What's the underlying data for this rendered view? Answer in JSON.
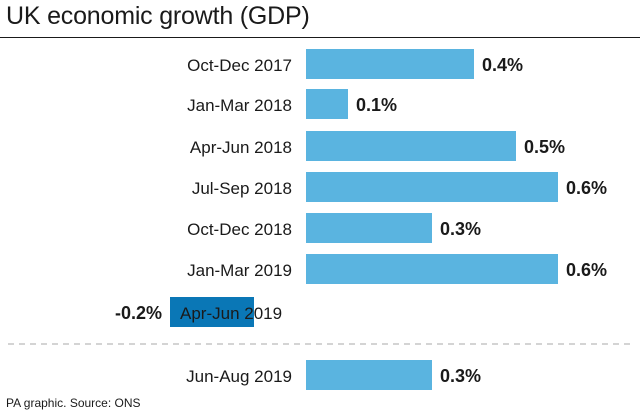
{
  "chart_data": {
    "type": "bar",
    "orientation": "horizontal",
    "title": "UK economic growth (GDP)",
    "categories": [
      "Oct-Dec 2017",
      "Jan-Mar 2018",
      "Apr-Jun 2018",
      "Jul-Sep 2018",
      "Oct-Dec 2018",
      "Jan-Mar 2019",
      "Apr-Jun 2019",
      "Jun-Aug 2019"
    ],
    "values": [
      0.4,
      0.1,
      0.5,
      0.6,
      0.3,
      0.6,
      -0.2,
      0.3
    ],
    "value_labels": [
      "0.4%",
      "0.1%",
      "0.5%",
      "0.6%",
      "0.3%",
      "0.6%",
      "-0.2%",
      "0.3%"
    ],
    "xlim": [
      -0.2,
      0.6
    ],
    "grid": false,
    "divider_before_category": "Jun-Aug 2019",
    "colors": {
      "positive": "#5ab4e0",
      "negative": "#0a77b6",
      "divider": "#bbbbbb"
    }
  },
  "source": "PA graphic. Source: ONS"
}
